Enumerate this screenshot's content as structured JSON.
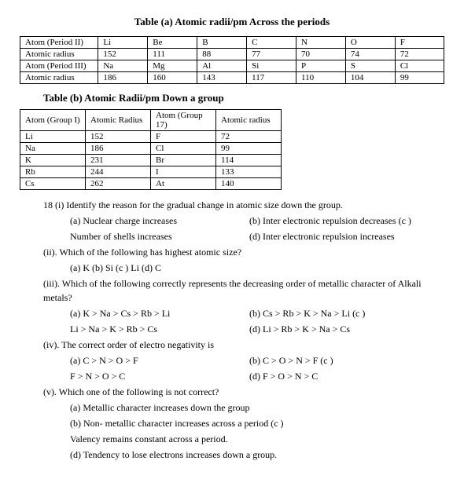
{
  "title_a": "Table (a) Atomic radii/pm Across the periods",
  "table_a": {
    "rows": [
      [
        "Atom (Period II)",
        "Li",
        "Be",
        "B",
        "C",
        "N",
        "O",
        "F"
      ],
      [
        "Atomic radius",
        "152",
        "111",
        "88",
        "77",
        "70",
        "74",
        "72"
      ],
      [
        "Atom (Period III)",
        "Na",
        "Mg",
        "Al",
        "Si",
        "P",
        "S",
        "Cl"
      ],
      [
        "Atomic radius",
        "186",
        "160",
        "143",
        "117",
        "110",
        "104",
        "99"
      ]
    ]
  },
  "title_b": "Table (b) Atomic Radii/pm Down a group",
  "table_b": {
    "header": [
      "Atom (Group I)",
      "Atomic Radius",
      "Atom (Group 17)",
      "Atomic radius"
    ],
    "rows": [
      [
        "Li",
        "152",
        "F",
        "72"
      ],
      [
        "Na",
        "186",
        "Cl",
        "99"
      ],
      [
        "K",
        "231",
        "Br",
        "114"
      ],
      [
        "Rb",
        "244",
        "I",
        "133"
      ],
      [
        "Cs",
        "262",
        "At",
        "140"
      ]
    ]
  },
  "q18": {
    "i": {
      "stem": "18 (i) Identify the reason for the gradual change in atomic size down the group.",
      "a": "(a) Nuclear charge increases",
      "b": "(b) Inter electronic repulsion decreases (c )",
      "c_line": "Number of shells increases",
      "d": "(d) Inter electronic repulsion increases"
    },
    "ii": {
      "stem": "(ii). Which of the following has highest atomic size?",
      "opts": "(a)    K     (b) Si     (c ) Li     (d) C"
    },
    "iii": {
      "stem": "(iii). Which of the following correctly represents the decreasing order of metallic character of Alkali metals?",
      "a": "(a) K > Na > Cs > Rb > Li",
      "b": "(b) Cs > Rb > K > Na > Li (c )",
      "c_line": "Li > Na > K > Rb > Cs",
      "d": "(d) Li > Rb > K > Na > Cs"
    },
    "iv": {
      "stem": "(iv). The correct order of electro negativity is",
      "a": "(a) C > N > O > F",
      "b": "(b) C > O > N > F (c )",
      "c_line": "F > N > O > C",
      "d": "(d) F > O > N > C"
    },
    "v": {
      "stem": "(v). Which one of the following is not correct?",
      "a": "(a) Metallic character increases down the group",
      "b": "(b) Non- metallic character increases across a period (c )",
      "c_line": "Valency remains constant across a period.",
      "d": "(d) Tendency to lose electrons increases down a group."
    }
  }
}
